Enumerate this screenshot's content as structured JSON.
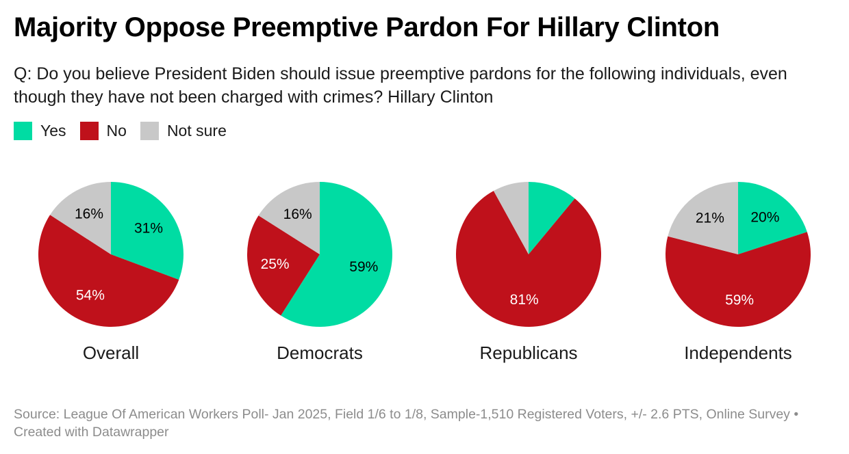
{
  "header": {
    "title": "Majority Oppose Preemptive Pardon For Hillary Clinton",
    "subtitle": "Q: Do you believe President Biden should issue preemptive pardons for the following individuals, even though they have not been charged with crimes? Hillary Clinton"
  },
  "legend": [
    {
      "label": "Yes",
      "color": "#00dca3"
    },
    {
      "label": "No",
      "color": "#bf111b"
    },
    {
      "label": "Not sure",
      "color": "#c8c8c8"
    }
  ],
  "chart_data": {
    "type": "pie",
    "title": "Majority Oppose Preemptive Pardon For Hillary Clinton",
    "series_names": [
      "Yes",
      "No",
      "Not sure"
    ],
    "colors": [
      "#00dca3",
      "#bf111b",
      "#c8c8c8"
    ],
    "label_colors": [
      "#000000",
      "#ffffff",
      "#000000"
    ],
    "groups": [
      {
        "name": "Overall",
        "values": [
          31,
          54,
          16
        ],
        "labels": [
          "31%",
          "54%",
          "16%"
        ]
      },
      {
        "name": "Democrats",
        "values": [
          59,
          25,
          16
        ],
        "labels": [
          "59%",
          "25%",
          "16%"
        ]
      },
      {
        "name": "Republicans",
        "values": [
          11,
          81,
          8
        ],
        "labels": [
          "",
          "81%",
          ""
        ]
      },
      {
        "name": "Independents",
        "values": [
          20,
          59,
          21
        ],
        "labels": [
          "20%",
          "59%",
          "21%"
        ]
      }
    ]
  },
  "footer": {
    "source": "Source: League Of American Workers Poll- Jan 2025, Field 1/6 to 1/8, Sample-1,510 Registered Voters, +/- 2.6 PTS, Online Survey • Created with Datawrapper"
  }
}
